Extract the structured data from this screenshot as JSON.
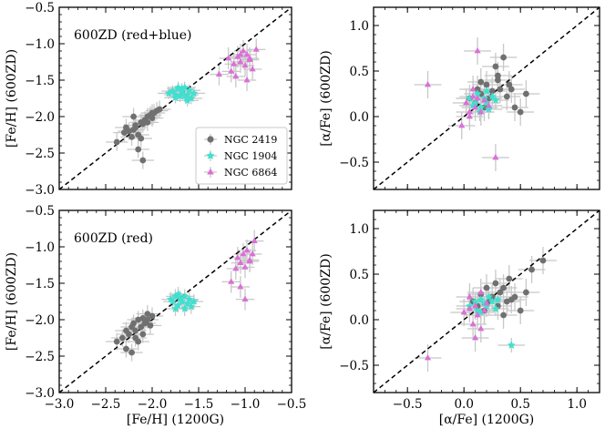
{
  "chart_data": [
    {
      "type": "scatter",
      "id": "fe-redblue",
      "annotation": "600ZD (red+blue)",
      "xlabel": "",
      "ylabel": "[Fe/H] (600ZD)",
      "xlim": [
        -3.0,
        -0.5
      ],
      "ylim": [
        -3.0,
        -0.5
      ],
      "xticks": [
        -3.0,
        -2.5,
        -2.0,
        -1.5,
        -1.0,
        -0.5
      ],
      "yticks": [
        -3.0,
        -2.5,
        -2.0,
        -1.5,
        -1.0,
        -0.5
      ],
      "xtick_labels": [
        "",
        "",
        "",
        "",
        "",
        ""
      ],
      "ytick_labels": [
        "−3.0",
        "−2.5",
        "−2.0",
        "−1.5",
        "−1.0",
        "−0.5"
      ],
      "identity_line": true,
      "legend": {
        "position": "lower-right",
        "entries": [
          {
            "label": "NGC 2419",
            "color": "#707070",
            "marker": "circle"
          },
          {
            "label": "NGC 1904",
            "color": "#40e0d0",
            "marker": "star"
          },
          {
            "label": "NGC 6864",
            "color": "#da70d6",
            "marker": "triangle"
          }
        ]
      },
      "series": [
        {
          "name": "NGC 2419",
          "color": "#707070",
          "marker": "circle",
          "xerr": 0.12,
          "yerr": 0.12,
          "x": [
            -2.38,
            -2.3,
            -2.25,
            -2.22,
            -2.2,
            -2.18,
            -2.15,
            -2.12,
            -2.1,
            -2.08,
            -2.05,
            -2.05,
            -2.02,
            -2.0,
            -1.98,
            -1.95,
            -1.92,
            -2.28,
            -2.15,
            -2.2,
            -2.1,
            -2.0,
            -2.12,
            -2.18
          ],
          "y": [
            -2.35,
            -2.22,
            -2.2,
            -2.28,
            -2.18,
            -2.12,
            -2.25,
            -2.08,
            -2.1,
            -2.05,
            -2.0,
            -2.08,
            -1.98,
            -2.02,
            -1.95,
            -1.92,
            -1.9,
            -2.15,
            -2.45,
            -2.0,
            -2.6,
            -1.95,
            -2.3,
            -2.15
          ]
        },
        {
          "name": "NGC 1904",
          "color": "#40e0d0",
          "marker": "star",
          "xerr": 0.12,
          "yerr": 0.08,
          "x": [
            -1.82,
            -1.78,
            -1.75,
            -1.72,
            -1.7,
            -1.68,
            -1.65,
            -1.62,
            -1.6,
            -1.58,
            -1.55,
            -1.75,
            -1.68,
            -1.62,
            -1.72,
            -1.65
          ],
          "y": [
            -1.68,
            -1.65,
            -1.7,
            -1.62,
            -1.72,
            -1.66,
            -1.6,
            -1.7,
            -1.64,
            -1.75,
            -1.68,
            -1.74,
            -1.62,
            -1.78,
            -1.6,
            -1.72
          ]
        },
        {
          "name": "NGC 6864",
          "color": "#da70d6",
          "marker": "triangle",
          "xerr": 0.1,
          "yerr": 0.15,
          "x": [
            -1.28,
            -1.18,
            -1.12,
            -1.08,
            -1.05,
            -1.02,
            -1.0,
            -0.98,
            -0.95,
            -0.92,
            -0.88,
            -1.1,
            -0.98,
            -1.15,
            -1.05,
            -0.95
          ],
          "y": [
            -1.42,
            -1.2,
            -1.28,
            -1.18,
            -1.25,
            -1.1,
            -1.3,
            -1.15,
            -1.2,
            -1.35,
            -1.08,
            -1.45,
            -1.5,
            -1.38,
            -1.15,
            -1.22
          ]
        }
      ]
    },
    {
      "type": "scatter",
      "id": "alpha-redblue",
      "annotation": "",
      "xlabel": "",
      "ylabel": "[α/Fe] (600ZD)",
      "xlim": [
        -0.8,
        1.2
      ],
      "ylim": [
        -0.8,
        1.2
      ],
      "xticks": [
        -0.5,
        0.0,
        0.5,
        1.0
      ],
      "yticks": [
        -0.5,
        0.0,
        0.5,
        1.0
      ],
      "xtick_labels": [
        "",
        "",
        "",
        ""
      ],
      "ytick_labels": [
        "−0.5",
        "0.0",
        "0.5",
        "1.0"
      ],
      "identity_line": true,
      "series": [
        {
          "name": "NGC 2419",
          "color": "#707070",
          "marker": "circle",
          "xerr": 0.12,
          "yerr": 0.15,
          "x": [
            0.05,
            0.1,
            0.12,
            0.15,
            0.18,
            0.2,
            0.22,
            0.25,
            0.28,
            0.3,
            0.32,
            0.35,
            0.38,
            0.4,
            0.45,
            0.5,
            0.55,
            0.3,
            0.42,
            0.15
          ],
          "y": [
            0.2,
            0.15,
            0.3,
            0.25,
            0.1,
            0.35,
            0.2,
            0.28,
            0.55,
            0.4,
            0.3,
            0.65,
            0.22,
            0.35,
            0.1,
            0.05,
            0.25,
            0.45,
            0.3,
            0.38
          ]
        },
        {
          "name": "NGC 1904",
          "color": "#40e0d0",
          "marker": "star",
          "xerr": 0.12,
          "yerr": 0.1,
          "x": [
            0.05,
            0.1,
            0.12,
            0.15,
            0.18,
            0.2,
            0.22,
            0.25,
            0.08,
            0.28,
            0.14,
            0.2
          ],
          "y": [
            0.2,
            0.15,
            0.25,
            0.1,
            0.2,
            0.15,
            0.08,
            0.22,
            0.12,
            0.18,
            0.05,
            0.28
          ]
        },
        {
          "name": "NGC 6864",
          "color": "#da70d6",
          "marker": "triangle",
          "xerr": 0.12,
          "yerr": 0.15,
          "x": [
            -0.32,
            -0.02,
            0.02,
            0.05,
            0.08,
            0.1,
            0.12,
            0.15,
            0.18,
            0.22,
            0.28,
            0.08,
            0.05,
            0.12
          ],
          "y": [
            0.35,
            -0.1,
            0.15,
            0.05,
            0.22,
            0.1,
            0.72,
            0.05,
            0.18,
            0.12,
            -0.45,
            0.3,
            0.0,
            0.2
          ]
        }
      ]
    },
    {
      "type": "scatter",
      "id": "fe-red",
      "annotation": "600ZD (red)",
      "xlabel": "[Fe/H] (1200G)",
      "ylabel": "[Fe/H] (600ZD)",
      "xlim": [
        -3.0,
        -0.5
      ],
      "ylim": [
        -3.0,
        -0.5
      ],
      "xticks": [
        -3.0,
        -2.5,
        -2.0,
        -1.5,
        -1.0,
        -0.5
      ],
      "yticks": [
        -3.0,
        -2.5,
        -2.0,
        -1.5,
        -1.0,
        -0.5
      ],
      "xtick_labels": [
        "−3.0",
        "−2.5",
        "−2.0",
        "−1.5",
        "−1.0",
        "−0.5"
      ],
      "ytick_labels": [
        "−3.0",
        "−2.5",
        "−2.0",
        "−1.5",
        "−1.0",
        "−0.5"
      ],
      "identity_line": true,
      "series": [
        {
          "name": "NGC 2419",
          "color": "#707070",
          "marker": "circle",
          "xerr": 0.12,
          "yerr": 0.12,
          "x": [
            -2.38,
            -2.32,
            -2.28,
            -2.25,
            -2.22,
            -2.2,
            -2.18,
            -2.15,
            -2.12,
            -2.1,
            -2.08,
            -2.05,
            -2.02,
            -2.0,
            -2.22,
            -2.15,
            -2.1,
            -2.28,
            -2.05,
            -2.18
          ],
          "y": [
            -2.3,
            -2.25,
            -2.15,
            -2.2,
            -2.1,
            -2.05,
            -2.25,
            -2.0,
            -2.1,
            -1.98,
            -2.05,
            -2.0,
            -2.08,
            -1.95,
            -2.45,
            -2.3,
            -2.2,
            -2.4,
            -1.92,
            -2.15
          ]
        },
        {
          "name": "NGC 1904",
          "color": "#40e0d0",
          "marker": "star",
          "xerr": 0.1,
          "yerr": 0.1,
          "x": [
            -1.8,
            -1.78,
            -1.75,
            -1.72,
            -1.7,
            -1.68,
            -1.65,
            -1.62,
            -1.6,
            -1.58,
            -1.55,
            -1.72,
            -1.65,
            -1.75
          ],
          "y": [
            -1.72,
            -1.75,
            -1.68,
            -1.8,
            -1.7,
            -1.75,
            -1.68,
            -1.78,
            -1.72,
            -1.82,
            -1.75,
            -1.65,
            -1.85,
            -1.85
          ]
        },
        {
          "name": "NGC 6864",
          "color": "#da70d6",
          "marker": "triangle",
          "xerr": 0.1,
          "yerr": 0.15,
          "x": [
            -1.15,
            -1.1,
            -1.08,
            -1.05,
            -1.02,
            -1.0,
            -0.98,
            -0.95,
            -0.92,
            -0.9,
            -1.05,
            -1.0,
            -0.95
          ],
          "y": [
            -1.48,
            -1.3,
            -1.15,
            -1.22,
            -1.1,
            -1.28,
            -1.05,
            -1.18,
            -1.1,
            -0.92,
            -1.55,
            -1.72,
            -1.2
          ]
        }
      ]
    },
    {
      "type": "scatter",
      "id": "alpha-red",
      "annotation": "",
      "xlabel": "[α/Fe] (1200G)",
      "ylabel": "[α/Fe] (600ZD)",
      "xlim": [
        -0.8,
        1.2
      ],
      "ylim": [
        -0.8,
        1.2
      ],
      "xticks": [
        -0.5,
        0.0,
        0.5,
        1.0
      ],
      "yticks": [
        -0.5,
        0.0,
        0.5,
        1.0
      ],
      "xtick_labels": [
        "−0.5",
        "0.0",
        "0.5",
        "1.0"
      ],
      "ytick_labels": [
        "−0.5",
        "0.0",
        "0.5",
        "1.0"
      ],
      "identity_line": true,
      "series": [
        {
          "name": "NGC 2419",
          "color": "#707070",
          "marker": "circle",
          "xerr": 0.12,
          "yerr": 0.15,
          "x": [
            0.08,
            0.12,
            0.15,
            0.18,
            0.2,
            0.22,
            0.25,
            0.28,
            0.3,
            0.32,
            0.35,
            0.38,
            0.4,
            0.45,
            0.5,
            0.55,
            0.6,
            0.7,
            0.35,
            0.42
          ],
          "y": [
            0.2,
            0.15,
            0.28,
            0.1,
            0.35,
            0.2,
            0.25,
            0.4,
            0.15,
            0.3,
            0.35,
            0.2,
            0.45,
            0.25,
            0.1,
            0.3,
            0.55,
            0.65,
            0.05,
            0.22
          ]
        },
        {
          "name": "NGC 1904",
          "color": "#40e0d0",
          "marker": "star",
          "xerr": 0.12,
          "yerr": 0.08,
          "x": [
            0.05,
            0.1,
            0.12,
            0.15,
            0.18,
            0.2,
            0.22,
            0.25,
            0.28,
            0.3,
            0.42,
            0.15
          ],
          "y": [
            0.15,
            0.2,
            0.1,
            0.22,
            0.18,
            0.15,
            0.25,
            0.2,
            0.12,
            0.22,
            -0.28,
            0.08
          ]
        },
        {
          "name": "NGC 6864",
          "color": "#da70d6",
          "marker": "triangle",
          "xerr": 0.12,
          "yerr": 0.15,
          "x": [
            -0.32,
            0.0,
            0.05,
            0.08,
            0.1,
            0.12,
            0.15,
            0.18,
            0.2,
            0.1,
            0.05,
            0.15
          ],
          "y": [
            -0.42,
            0.08,
            0.12,
            -0.05,
            0.15,
            0.05,
            -0.1,
            0.1,
            0.18,
            -0.2,
            0.25,
            0.3
          ]
        }
      ]
    }
  ]
}
